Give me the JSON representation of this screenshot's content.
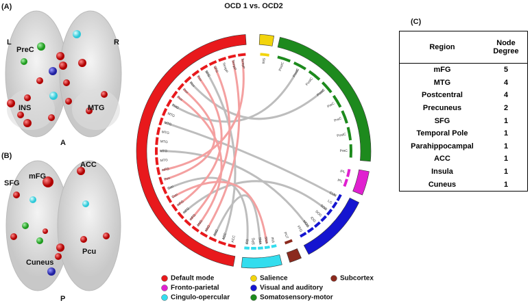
{
  "title": "OCD 1 vs. OCD2",
  "panel_a": {
    "label": "(A)",
    "left": "L",
    "right": "R",
    "labels": [
      "PreC",
      "INS",
      "MTG"
    ],
    "orientation": "A"
  },
  "panel_b": {
    "label": "(B)",
    "labels": [
      "mFG",
      "ACC",
      "SFG",
      "Pcu",
      "Cuneus"
    ],
    "orientation": "P"
  },
  "circos": {
    "groups": [
      {
        "name": "Default mode",
        "color": "#e8191c",
        "nodes": [
          "ACC",
          "ACC",
          "ANG",
          "ANG",
          "ANG",
          "mFG",
          "mFG",
          "mFG",
          "Cun",
          "Cun",
          "Pcu",
          "mFG",
          "MTG",
          "MTG",
          "MTG",
          "MTG",
          "MTG",
          "MTG",
          "PHG",
          "Pcu",
          "Pcu",
          "Pcu",
          "Pcu",
          "SFG",
          "SFG",
          "TempP",
          "TempP",
          "TempP"
        ]
      },
      {
        "name": "Fronto-parietal",
        "color": "#e020d0",
        "nodes": [
          "IPL",
          "IPL"
        ]
      },
      {
        "name": "Cingulo-opercular",
        "color": "#33ddee",
        "nodes": [
          "INS",
          "SMA",
          "SMA",
          "SPG",
          "IFG"
        ]
      },
      {
        "name": "Salience",
        "color": "#f2d40c",
        "nodes": [
          "INS"
        ]
      },
      {
        "name": "Visual and auditory",
        "color": "#1515d0",
        "nodes": [
          "CUN",
          "LG",
          "SOG",
          "SOG",
          "IOG",
          "MOG",
          "FFG"
        ]
      },
      {
        "name": "Somatosensory-motor",
        "color": "#1d8a1d",
        "nodes": [
          "PostC",
          "PostC",
          "PostC",
          "PostC",
          "PreC",
          "PreC",
          "PostC",
          "PreC"
        ]
      },
      {
        "name": "Subcortex",
        "color": "#8b2a1e",
        "nodes": [
          "PUT"
        ]
      }
    ]
  },
  "panel_c": {
    "label": "(C)",
    "table": {
      "header": [
        "Region",
        "Node Degree"
      ],
      "rows": [
        [
          "mFG",
          5
        ],
        [
          "MTG",
          4
        ],
        [
          "Postcentral",
          4
        ],
        [
          "Precuneus",
          2
        ],
        [
          "SFG",
          1
        ],
        [
          "Temporal Pole",
          1
        ],
        [
          "Parahippocampal",
          1
        ],
        [
          "ACC",
          1
        ],
        [
          "Insula",
          1
        ],
        [
          "Cuneus",
          1
        ]
      ]
    }
  }
}
